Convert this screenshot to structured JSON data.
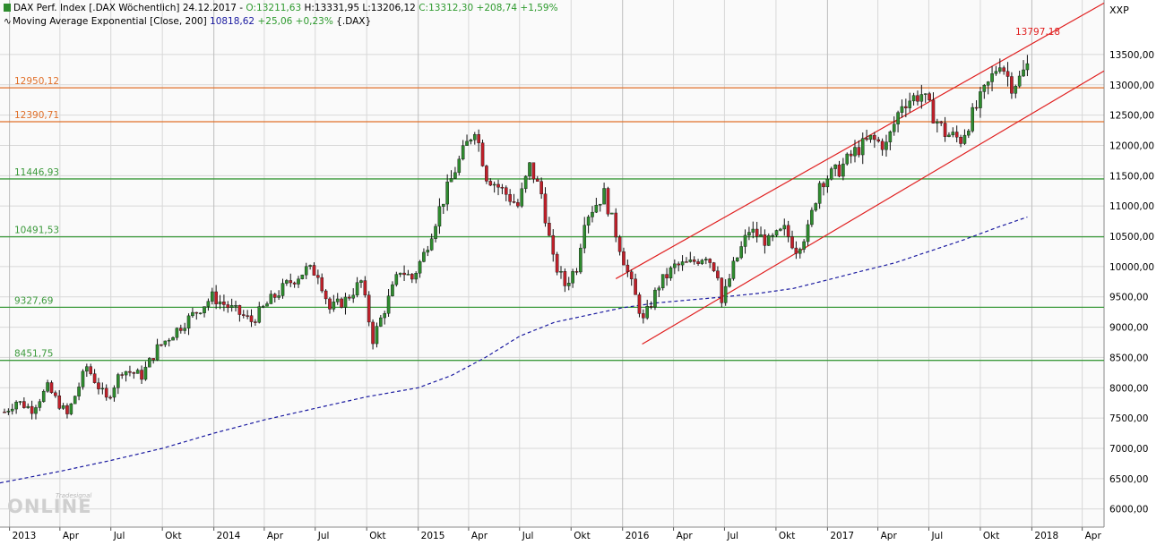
{
  "legend": {
    "line1": {
      "name": "DAX Perf. Index [.DAX  Wöchentlich]",
      "date": "24.12.2017",
      "open": "O:13211,63",
      "high": "H:13331,95",
      "low": "L:13206,12",
      "close": "C:13312,30",
      "change": "+208,74",
      "change_pct": "+1,59%"
    },
    "line2": {
      "name": "Moving Average Exponential [Close, 200]",
      "value": "10818,62",
      "change": "+25,06",
      "change_pct": "+0,23%",
      "symbol": "{.DAX}"
    }
  },
  "currency_label": "XXP",
  "watermark": {
    "brand": "Tradesignal",
    "product": "online"
  },
  "colors": {
    "up_candle": "#2e8b2e",
    "down_candle": "#c0202a",
    "ma_line": "#1a1aa0",
    "orange_level": "#e0702a",
    "green_level": "#3c9a3c",
    "channel": "#e02020",
    "grid": "#d8d8d8"
  },
  "chart_data": {
    "type": "candlestick",
    "title": "DAX Perf. Index [.DAX  Wöchentlich]",
    "interval": "weekly",
    "y_range": [
      5700,
      14400
    ],
    "x_range": [
      "2012-12-15",
      "2018-05-10"
    ],
    "y_ticks": [
      "13500,00",
      "13000,00",
      "12500,00",
      "12000,00",
      "11500,00",
      "11000,00",
      "10500,00",
      "10000,00",
      "9500,00",
      "9000,00",
      "8500,00",
      "8000,00",
      "7500,00",
      "7000,00",
      "6500,00",
      "6000,00"
    ],
    "x_ticks": [
      {
        "date": "2013-01-01",
        "label": "2013",
        "year": true
      },
      {
        "date": "2013-04-01",
        "label": "Apr"
      },
      {
        "date": "2013-07-01",
        "label": "Jul"
      },
      {
        "date": "2013-10-01",
        "label": "Okt"
      },
      {
        "date": "2014-01-01",
        "label": "2014",
        "year": true
      },
      {
        "date": "2014-04-01",
        "label": "Apr"
      },
      {
        "date": "2014-07-01",
        "label": "Jul"
      },
      {
        "date": "2014-10-01",
        "label": "Okt"
      },
      {
        "date": "2015-01-01",
        "label": "2015",
        "year": true
      },
      {
        "date": "2015-04-01",
        "label": "Apr"
      },
      {
        "date": "2015-07-01",
        "label": "Jul"
      },
      {
        "date": "2015-10-01",
        "label": "Okt"
      },
      {
        "date": "2016-01-01",
        "label": "2016",
        "year": true
      },
      {
        "date": "2016-04-01",
        "label": "Apr"
      },
      {
        "date": "2016-07-01",
        "label": "Jul"
      },
      {
        "date": "2016-10-01",
        "label": "Okt"
      },
      {
        "date": "2017-01-01",
        "label": "2017",
        "year": true
      },
      {
        "date": "2017-04-01",
        "label": "Apr"
      },
      {
        "date": "2017-07-01",
        "label": "Jul"
      },
      {
        "date": "2017-10-01",
        "label": "Okt"
      },
      {
        "date": "2018-01-01",
        "label": "2018",
        "year": true
      },
      {
        "date": "2018-04-01",
        "label": "Apr"
      }
    ],
    "levels": [
      {
        "value": 12950.12,
        "label": "12950,12",
        "kind": "orange"
      },
      {
        "value": 12390.71,
        "label": "12390,71",
        "kind": "orange"
      },
      {
        "value": 11446.93,
        "label": "11446,93",
        "kind": "green"
      },
      {
        "value": 10491.53,
        "label": "10491,53",
        "kind": "green"
      },
      {
        "value": 9327.69,
        "label": "9327,69",
        "kind": "green"
      },
      {
        "value": 8451.75,
        "label": "8451,75",
        "kind": "green"
      }
    ],
    "channel": [
      {
        "from": {
          "date": "2015-12-20",
          "value": 9800
        },
        "to": {
          "date": "2018-05-10",
          "value": 14350
        }
      },
      {
        "from": {
          "date": "2016-02-05",
          "value": 8720
        },
        "to": {
          "date": "2018-05-10",
          "value": 13230
        }
      }
    ],
    "annotation": {
      "label": "13797,18",
      "value": 13797.18
    },
    "moving_average": {
      "name": "Moving Average Exponential [Close, 200]",
      "points": [
        [
          "2012-12-15",
          6430
        ],
        [
          "2013-04-01",
          6620
        ],
        [
          "2013-07-01",
          6800
        ],
        [
          "2013-10-01",
          7000
        ],
        [
          "2014-01-01",
          7250
        ],
        [
          "2014-04-01",
          7470
        ],
        [
          "2014-07-01",
          7660
        ],
        [
          "2014-10-01",
          7850
        ],
        [
          "2015-01-01",
          8000
        ],
        [
          "2015-03-01",
          8200
        ],
        [
          "2015-05-01",
          8500
        ],
        [
          "2015-07-01",
          8850
        ],
        [
          "2015-09-01",
          9080
        ],
        [
          "2015-11-01",
          9200
        ],
        [
          "2016-01-01",
          9320
        ],
        [
          "2016-03-01",
          9400
        ],
        [
          "2016-05-01",
          9450
        ],
        [
          "2016-07-01",
          9500
        ],
        [
          "2016-09-01",
          9560
        ],
        [
          "2016-11-01",
          9640
        ],
        [
          "2017-01-01",
          9780
        ],
        [
          "2017-03-01",
          9920
        ],
        [
          "2017-05-01",
          10060
        ],
        [
          "2017-07-01",
          10250
        ],
        [
          "2017-09-01",
          10440
        ],
        [
          "2017-11-01",
          10650
        ],
        [
          "2017-12-24",
          10818.62
        ]
      ]
    },
    "close_path": [
      [
        "2012-12-23",
        7600
      ],
      [
        "2013-01-13",
        7780
      ],
      [
        "2013-02-10",
        7650
      ],
      [
        "2013-03-10",
        8000
      ],
      [
        "2013-04-14",
        7550
      ],
      [
        "2013-05-19",
        8350
      ],
      [
        "2013-06-23",
        7800
      ],
      [
        "2013-07-21",
        8300
      ],
      [
        "2013-08-25",
        8200
      ],
      [
        "2013-09-22",
        8650
      ],
      [
        "2013-10-20",
        8900
      ],
      [
        "2013-11-24",
        9200
      ],
      [
        "2013-12-29",
        9500
      ],
      [
        "2014-02-02",
        9300
      ],
      [
        "2014-03-09",
        9100
      ],
      [
        "2014-04-13",
        9450
      ],
      [
        "2014-05-11",
        9700
      ],
      [
        "2014-06-15",
        9950
      ],
      [
        "2014-07-06",
        9900
      ],
      [
        "2014-07-27",
        9300
      ],
      [
        "2014-08-24",
        9450
      ],
      [
        "2014-09-21",
        9750
      ],
      [
        "2014-10-12",
        8800
      ],
      [
        "2014-11-02",
        9300
      ],
      [
        "2014-11-30",
        9950
      ],
      [
        "2014-12-21",
        9800
      ],
      [
        "2015-01-11",
        10200
      ],
      [
        "2015-02-08",
        10950
      ],
      [
        "2015-03-08",
        11600
      ],
      [
        "2015-04-12",
        12300
      ],
      [
        "2015-05-03",
        11500
      ],
      [
        "2015-06-07",
        11200
      ],
      [
        "2015-06-28",
        11000
      ],
      [
        "2015-07-19",
        11650
      ],
      [
        "2015-08-09",
        11200
      ],
      [
        "2015-08-30",
        10100
      ],
      [
        "2015-09-20",
        9700
      ],
      [
        "2015-10-11",
        10000
      ],
      [
        "2015-10-25",
        10800
      ],
      [
        "2015-11-29",
        11200
      ],
      [
        "2015-12-20",
        10550
      ],
      [
        "2016-01-10",
        9900
      ],
      [
        "2016-02-07",
        9100
      ],
      [
        "2016-03-06",
        9700
      ],
      [
        "2016-04-03",
        10000
      ],
      [
        "2016-05-01",
        10050
      ],
      [
        "2016-05-29",
        10200
      ],
      [
        "2016-06-19",
        9900
      ],
      [
        "2016-06-26",
        9400
      ],
      [
        "2016-07-17",
        10000
      ],
      [
        "2016-08-14",
        10600
      ],
      [
        "2016-09-18",
        10400
      ],
      [
        "2016-10-16",
        10600
      ],
      [
        "2016-11-06",
        10300
      ],
      [
        "2016-11-27",
        10600
      ],
      [
        "2016-12-18",
        11400
      ],
      [
        "2017-01-22",
        11600
      ],
      [
        "2017-02-19",
        11900
      ],
      [
        "2017-03-19",
        12100
      ],
      [
        "2017-04-16",
        12000
      ],
      [
        "2017-05-14",
        12700
      ],
      [
        "2017-06-18",
        12850
      ],
      [
        "2017-07-09",
        12500
      ],
      [
        "2017-07-30",
        12200
      ],
      [
        "2017-08-27",
        12100
      ],
      [
        "2017-09-17",
        12500
      ],
      [
        "2017-10-15",
        13000
      ],
      [
        "2017-11-05",
        13400
      ],
      [
        "2017-11-26",
        13000
      ],
      [
        "2017-12-10",
        13100
      ],
      [
        "2017-12-24",
        13312.3
      ]
    ]
  }
}
